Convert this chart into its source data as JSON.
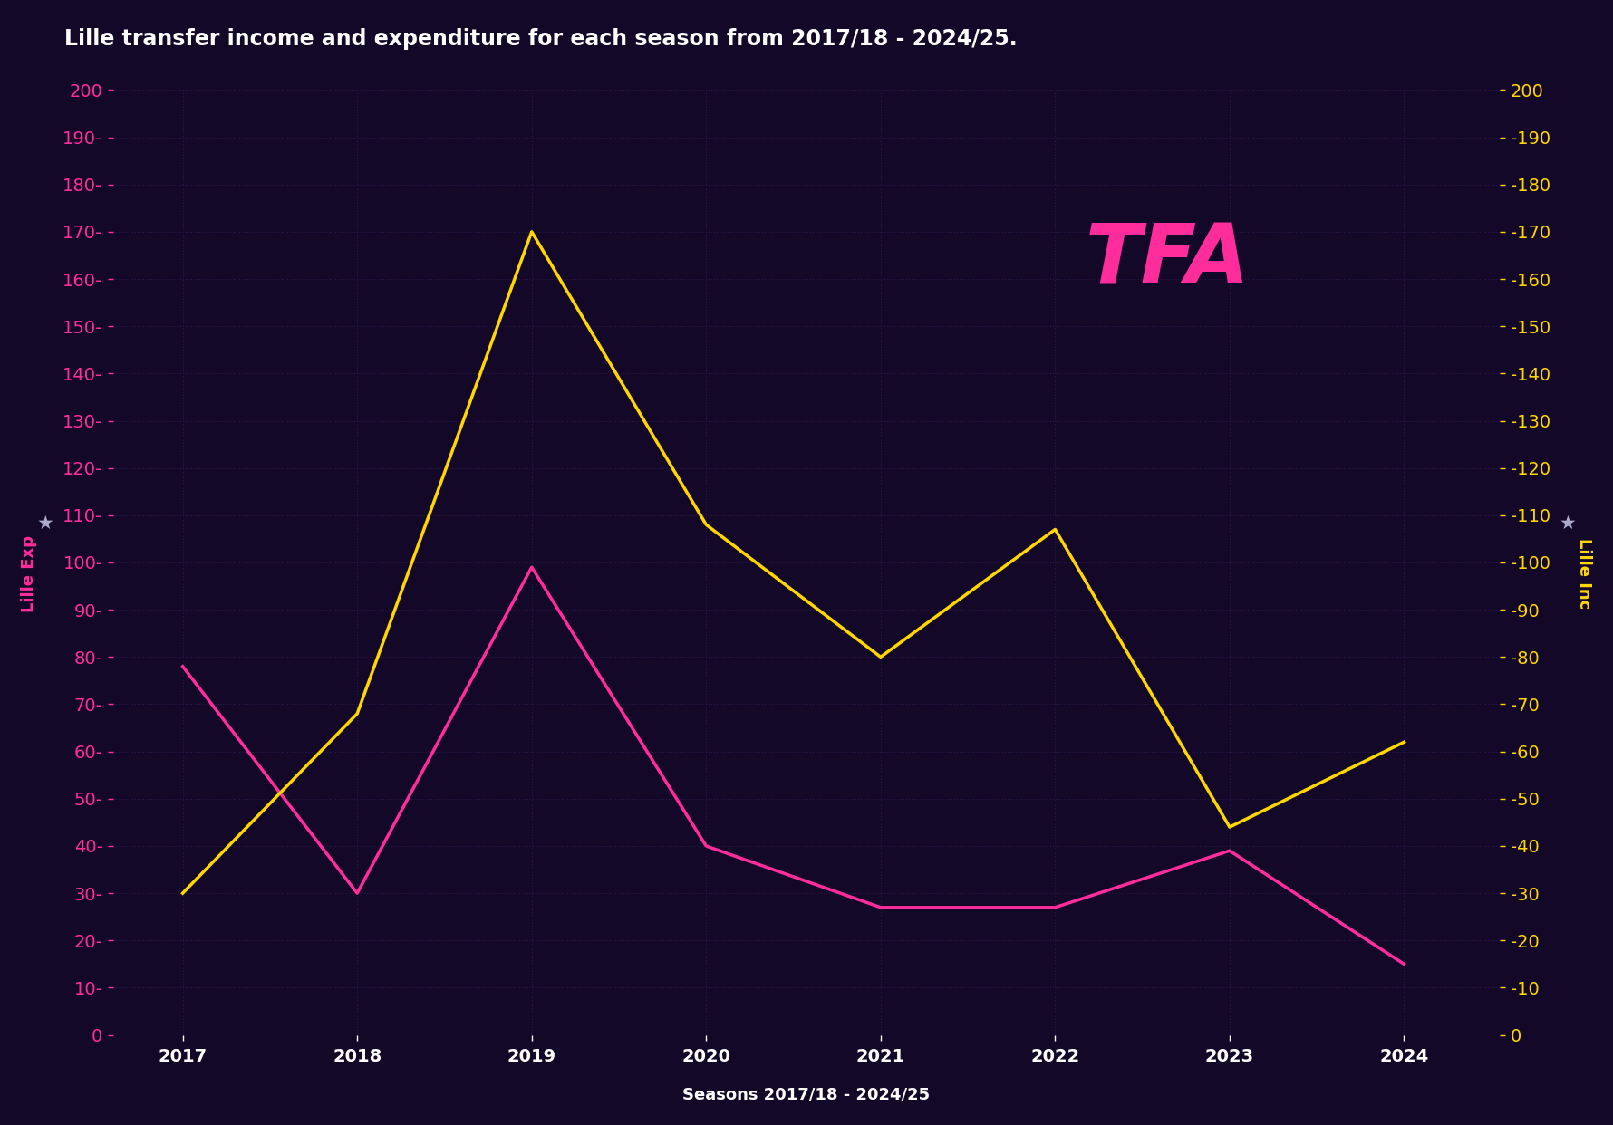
{
  "title": "Lille transfer income and expenditure for each season from 2017/18 - 2024/25.",
  "xlabel": "Seasons 2017/18 - 2024/25",
  "ylabel_left": "Lille Exp",
  "ylabel_right": "Lille Inc",
  "background_color": "#140828",
  "axes_bg_color": "#140828",
  "grid_color": "#2a1a4e",
  "title_color": "#ffffff",
  "xlabel_color": "#ffffff",
  "ylabel_left_color": "#ff2d9b",
  "ylabel_right_color": "#ffd700",
  "tick_left_color": "#ff2d9b",
  "tick_right_color": "#ffd700",
  "line_exp_color": "#ff2d9b",
  "line_inc_color": "#ffd700",
  "x_values": [
    2017,
    2018,
    2019,
    2020,
    2021,
    2022,
    2023,
    2024
  ],
  "expenditure": [
    78,
    30,
    99,
    40,
    27,
    27,
    39,
    15
  ],
  "income": [
    30,
    68,
    170,
    108,
    80,
    107,
    44,
    62
  ],
  "ylim": [
    0,
    200
  ],
  "yticks": [
    0,
    10,
    20,
    30,
    40,
    50,
    60,
    70,
    80,
    90,
    100,
    110,
    120,
    130,
    140,
    150,
    160,
    170,
    180,
    190,
    200
  ],
  "xticks": [
    2017,
    2018,
    2019,
    2020,
    2021,
    2022,
    2023,
    2024
  ],
  "tfa_color": "#ff2d9b",
  "star_color": "#aaaacc",
  "tick_fontsize": 14,
  "label_fontsize": 13,
  "title_fontsize": 17
}
